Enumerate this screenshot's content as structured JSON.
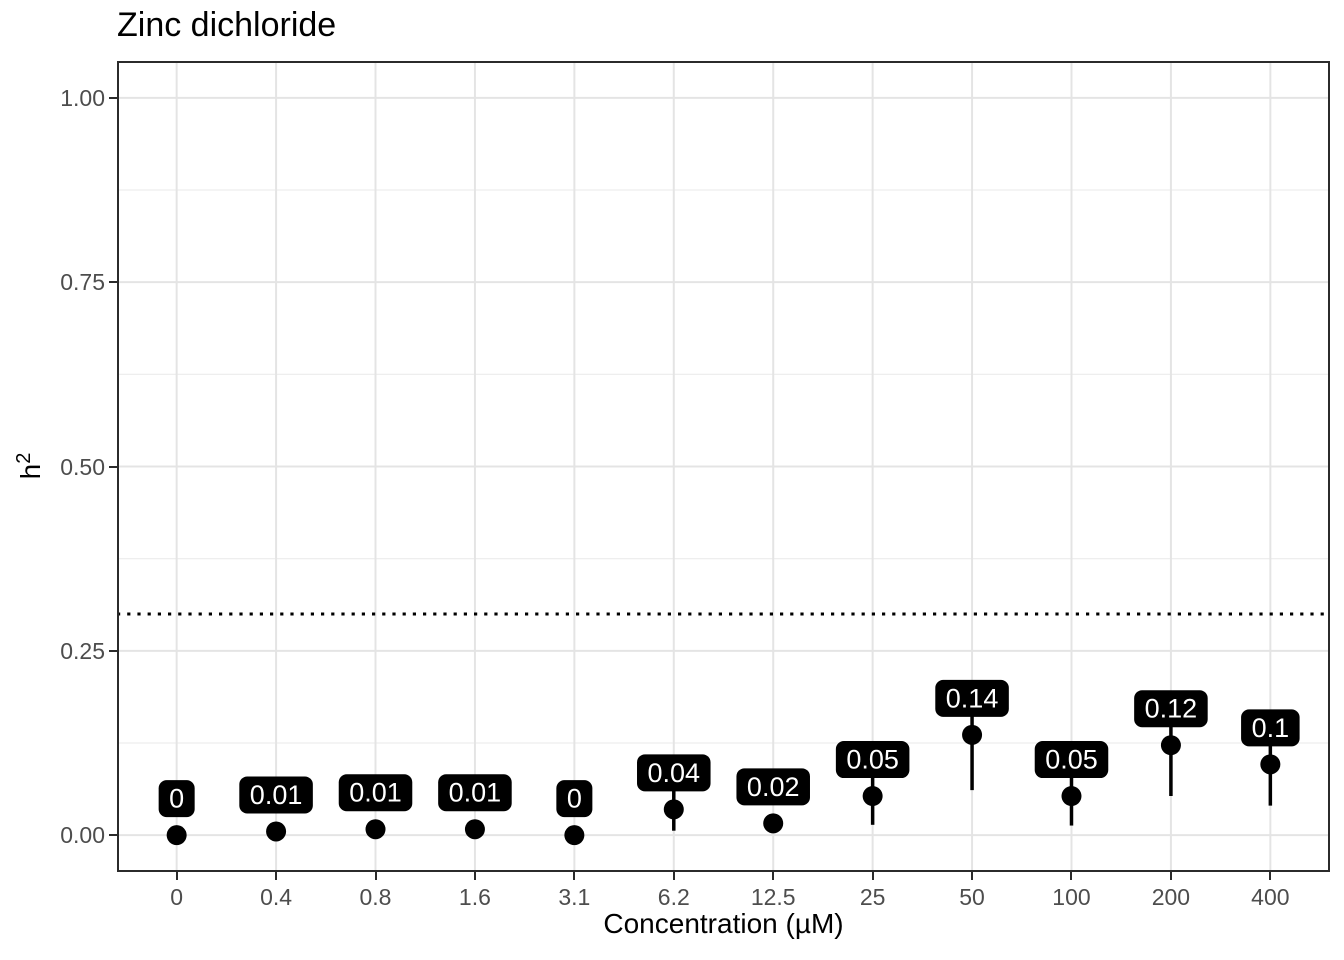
{
  "colors": {
    "background": "#ffffff",
    "panel_background": "#ffffff",
    "panel_border": "#2b2b2b",
    "grid_major": "#e4e4e4",
    "grid_minor": "#eeeeee",
    "axis_tick": "#2b2b2b",
    "tick_label": "#4d4d4d",
    "title_text": "#000000",
    "point": "#000000",
    "error_bar": "#000000",
    "reference_line": "#000000",
    "label_box_fill": "#000000",
    "label_box_text": "#ffffff"
  },
  "chart_data": {
    "type": "scatter",
    "title": "Zinc dichloride",
    "xlabel": "Concentration (µM)",
    "ylabel": "h²",
    "ylabel_base": "h",
    "ylabel_exponent": "2",
    "ylim": [
      -0.05,
      1.05
    ],
    "grid": "major-xy and minor-y, light grey on white, boxed panel",
    "legend": "none",
    "x_scale": "discrete (doubling concentration series)",
    "categories": [
      "0",
      "0.4",
      "0.8",
      "1.6",
      "3.1",
      "6.2",
      "12.5",
      "25",
      "50",
      "100",
      "200",
      "400"
    ],
    "yticks": {
      "values": [
        0.0,
        0.25,
        0.5,
        0.75,
        1.0
      ],
      "labels": [
        "0.00",
        "0.25",
        "0.50",
        "0.75",
        "1.00"
      ]
    },
    "y_minor_gridlines": [
      0.125,
      0.375,
      0.625,
      0.875
    ],
    "reference_line": {
      "y": 0.3,
      "style": "dotted"
    },
    "points": [
      {
        "x": "0",
        "y": 0.0,
        "label": "0",
        "ymin": null,
        "ymax": null
      },
      {
        "x": "0.4",
        "y": 0.005,
        "label": "0.01",
        "ymin": null,
        "ymax": null
      },
      {
        "x": "0.8",
        "y": 0.008,
        "label": "0.01",
        "ymin": null,
        "ymax": null
      },
      {
        "x": "1.6",
        "y": 0.008,
        "label": "0.01",
        "ymin": null,
        "ymax": null
      },
      {
        "x": "3.1",
        "y": 0.0,
        "label": "0",
        "ymin": null,
        "ymax": null
      },
      {
        "x": "6.2",
        "y": 0.035,
        "label": "0.04",
        "ymin": 0.006,
        "ymax": 0.07
      },
      {
        "x": "12.5",
        "y": 0.016,
        "label": "0.02",
        "ymin": null,
        "ymax": null
      },
      {
        "x": "25",
        "y": 0.053,
        "label": "0.05",
        "ymin": 0.014,
        "ymax": 0.09
      },
      {
        "x": "50",
        "y": 0.136,
        "label": "0.14",
        "ymin": 0.061,
        "ymax": 0.2
      },
      {
        "x": "100",
        "y": 0.053,
        "label": "0.05",
        "ymin": 0.013,
        "ymax": 0.09
      },
      {
        "x": "200",
        "y": 0.122,
        "label": "0.12",
        "ymin": 0.053,
        "ymax": 0.18
      },
      {
        "x": "400",
        "y": 0.096,
        "label": "0.1",
        "ymin": 0.04,
        "ymax": 0.16
      }
    ]
  }
}
